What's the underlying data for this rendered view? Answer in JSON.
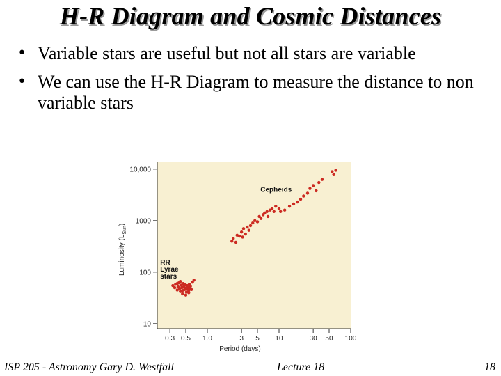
{
  "slide": {
    "title": "H-R Diagram and Cosmic Distances",
    "bullets": [
      "Variable stars are useful but not all stars are variable",
      "We can use the H-R Diagram to measure the distance to non variable stars"
    ],
    "footer": {
      "left": "ISP 205 - Astronomy   Gary D. Westfall",
      "center": "Lecture 18",
      "right": "18"
    }
  },
  "chart_data": {
    "type": "scatter",
    "xlabel": "Period (days)",
    "ylabel": "Luminosity (L",
    "ylabel_sub": "Sun",
    "ylabel_close": ")",
    "x_scale": "log",
    "y_scale": "log",
    "xlim": [
      0.2,
      100
    ],
    "ylim": [
      8,
      14000
    ],
    "x_ticks": [
      {
        "value": 0.3,
        "label": "0.3"
      },
      {
        "value": 0.5,
        "label": "0.5"
      },
      {
        "value": 1,
        "label": "1.0"
      },
      {
        "value": 3,
        "label": "3"
      },
      {
        "value": 5,
        "label": "5"
      },
      {
        "value": 10,
        "label": "10"
      },
      {
        "value": 30,
        "label": "30"
      },
      {
        "value": 50,
        "label": "50"
      },
      {
        "value": 100,
        "label": "100"
      }
    ],
    "y_ticks": [
      {
        "value": 10,
        "label": "10"
      },
      {
        "value": 100,
        "label": "100"
      },
      {
        "value": 1000,
        "label": "1000"
      },
      {
        "value": 10000,
        "label": "10,000"
      }
    ],
    "point_color": "#cc2b22",
    "background_color": "#f8f0d2",
    "annotations": [
      {
        "text": "Cepheids",
        "x": 5.5,
        "y": 3600
      },
      {
        "text": "RR",
        "x": 0.22,
        "y": 140
      },
      {
        "text": "Lyrae",
        "x": 0.22,
        "y": 102
      },
      {
        "text": "stars",
        "x": 0.22,
        "y": 75
      }
    ],
    "series": [
      {
        "name": "Cepheids",
        "points": [
          [
            2.2,
            400
          ],
          [
            2.3,
            450
          ],
          [
            2.5,
            380
          ],
          [
            2.6,
            520
          ],
          [
            2.8,
            500
          ],
          [
            3.0,
            600
          ],
          [
            3.1,
            480
          ],
          [
            3.2,
            700
          ],
          [
            3.4,
            550
          ],
          [
            3.6,
            750
          ],
          [
            3.8,
            650
          ],
          [
            4.0,
            800
          ],
          [
            4.3,
            900
          ],
          [
            4.6,
            1000
          ],
          [
            5.0,
            950
          ],
          [
            5.3,
            1200
          ],
          [
            5.6,
            1100
          ],
          [
            6.0,
            1300
          ],
          [
            6.3,
            1400
          ],
          [
            6.8,
            1500
          ],
          [
            7.0,
            1200
          ],
          [
            7.5,
            1600
          ],
          [
            8.0,
            1700
          ],
          [
            8.5,
            1500
          ],
          [
            9.0,
            1900
          ],
          [
            10.0,
            1700
          ],
          [
            10.5,
            1500
          ],
          [
            12.0,
            1600
          ],
          [
            14.0,
            1900
          ],
          [
            16.0,
            2100
          ],
          [
            18.0,
            2300
          ],
          [
            20.0,
            2600
          ],
          [
            22.0,
            3000
          ],
          [
            25.0,
            3400
          ],
          [
            27.0,
            4200
          ],
          [
            30.0,
            4800
          ],
          [
            33.0,
            3800
          ],
          [
            36.0,
            5500
          ],
          [
            40.0,
            6300
          ],
          [
            55.0,
            8900
          ],
          [
            58.0,
            7800
          ],
          [
            62.0,
            9500
          ]
        ]
      },
      {
        "name": "RR Lyrae stars",
        "points": [
          [
            0.33,
            55
          ],
          [
            0.35,
            50
          ],
          [
            0.36,
            58
          ],
          [
            0.38,
            45
          ],
          [
            0.39,
            52
          ],
          [
            0.4,
            62
          ],
          [
            0.41,
            48
          ],
          [
            0.42,
            42
          ],
          [
            0.43,
            56
          ],
          [
            0.44,
            50
          ],
          [
            0.45,
            44
          ],
          [
            0.46,
            60
          ],
          [
            0.47,
            53
          ],
          [
            0.48,
            46
          ],
          [
            0.49,
            57
          ],
          [
            0.5,
            49
          ],
          [
            0.51,
            41
          ],
          [
            0.52,
            55
          ],
          [
            0.53,
            47
          ],
          [
            0.54,
            51
          ],
          [
            0.55,
            44
          ],
          [
            0.56,
            58
          ],
          [
            0.57,
            48
          ],
          [
            0.58,
            53
          ],
          [
            0.6,
            46
          ],
          [
            0.62,
            64
          ],
          [
            0.45,
            38
          ],
          [
            0.5,
            36
          ],
          [
            0.55,
            40
          ],
          [
            0.42,
            66
          ],
          [
            0.38,
            60
          ],
          [
            0.65,
            70
          ]
        ]
      }
    ]
  }
}
